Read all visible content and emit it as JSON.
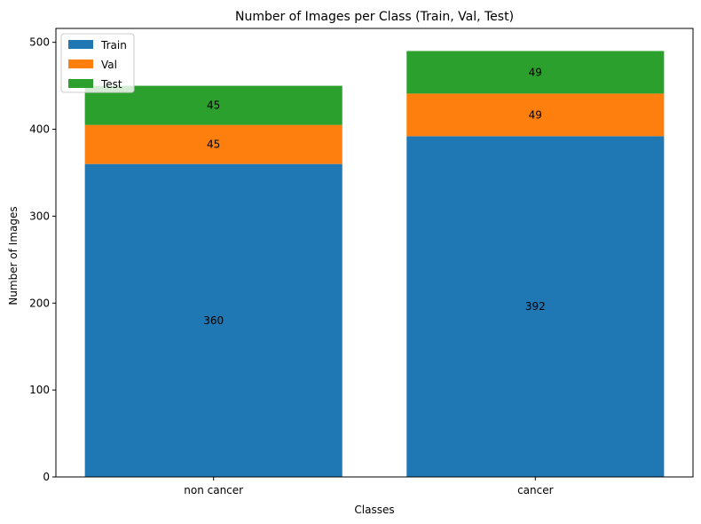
{
  "chart_data": {
    "type": "bar",
    "stacked": true,
    "title": "Number of Images per Class (Train, Val, Test)",
    "xlabel": "Classes",
    "ylabel": "Number of Images",
    "categories": [
      "non cancer",
      "cancer"
    ],
    "series": [
      {
        "name": "Train",
        "values": [
          360,
          392
        ],
        "color": "#1f77b4"
      },
      {
        "name": "Val",
        "values": [
          45,
          49
        ],
        "color": "#ff7f0e"
      },
      {
        "name": "Test",
        "values": [
          45,
          49
        ],
        "color": "#2ca02c"
      }
    ],
    "ylim": [
      0,
      516
    ],
    "yticks": [
      0,
      100,
      200,
      300,
      400,
      500
    ],
    "grid": false,
    "legend": "top-left"
  }
}
